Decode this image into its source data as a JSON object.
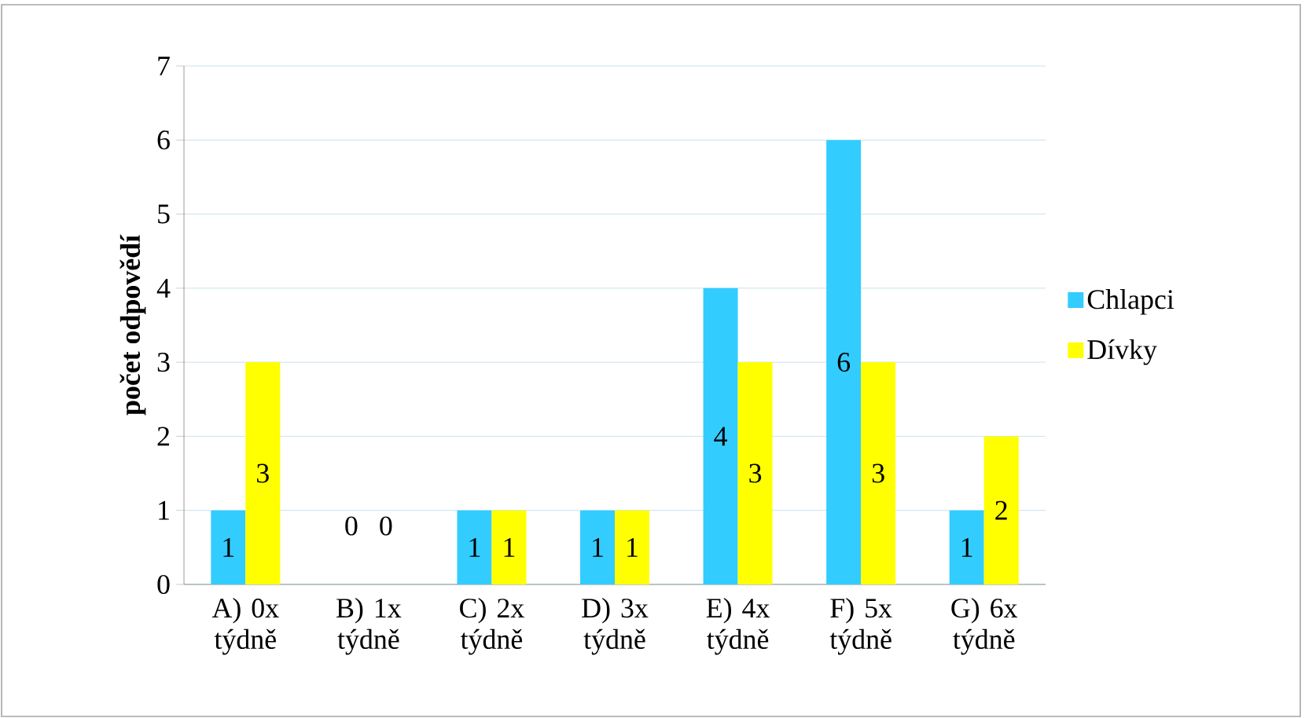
{
  "chart_data": {
    "type": "bar",
    "ylabel": "počet odpovědí",
    "categories": [
      "A) 0x týdně",
      "B) 1x týdně",
      "C) 2x týdně",
      "D) 3x týdně",
      "E) 4x týdně",
      "F) 5x týdně",
      "G) 6x týdně"
    ],
    "series": [
      {
        "name": "Chlapci",
        "color": "#33ccff",
        "values": [
          1,
          0,
          1,
          1,
          4,
          6,
          1
        ]
      },
      {
        "name": "Dívky",
        "color": "#ffff00",
        "values": [
          3,
          0,
          1,
          1,
          3,
          3,
          2
        ]
      }
    ],
    "ylim": [
      0,
      7
    ],
    "yticks": [
      0,
      1,
      2,
      3,
      4,
      5,
      6,
      7
    ],
    "grid": "y",
    "legend": "right",
    "data_labels": true
  }
}
